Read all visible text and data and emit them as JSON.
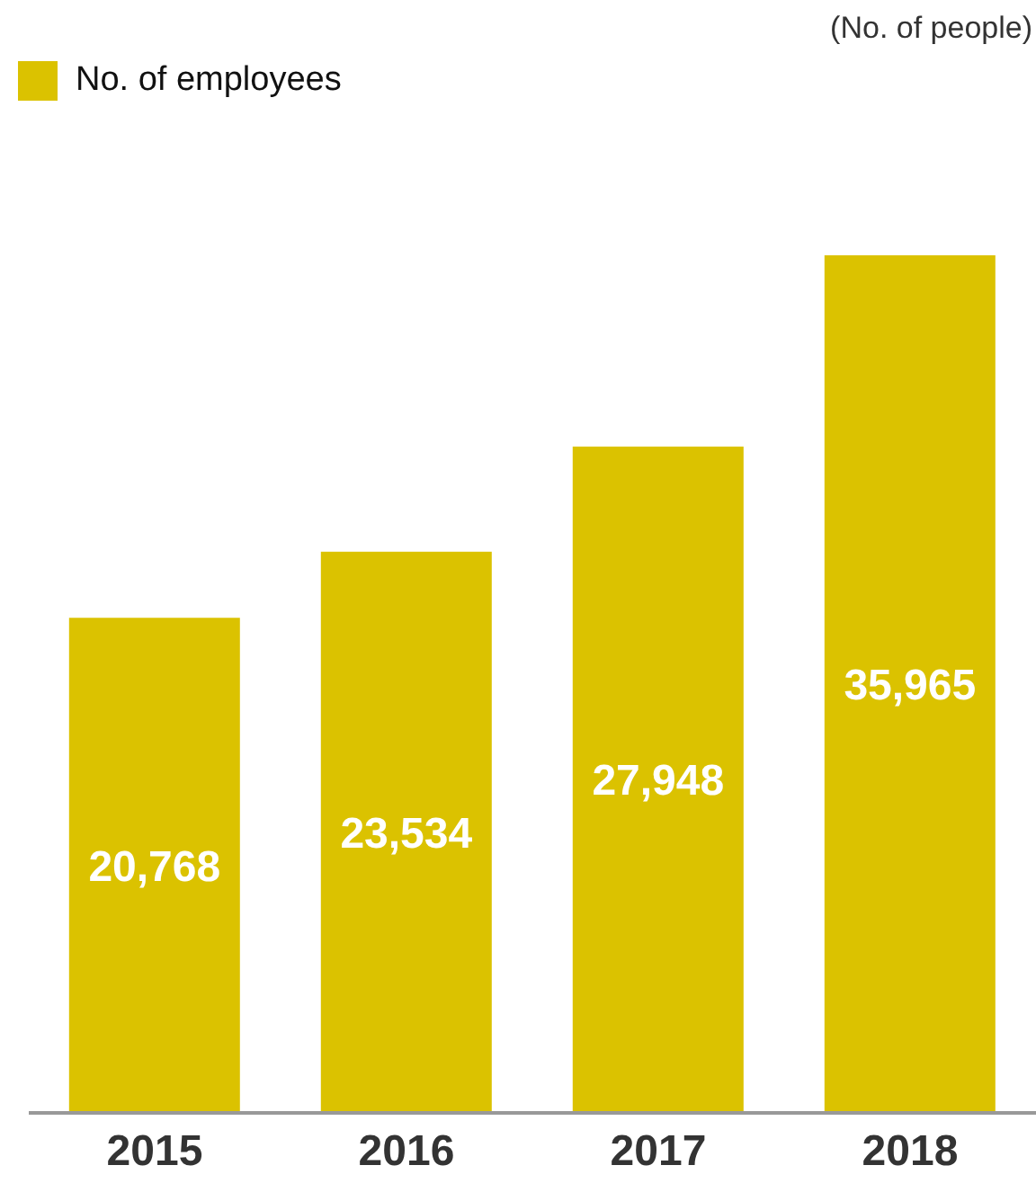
{
  "chart_data": {
    "type": "bar",
    "annotations": [
      "(No. of people)"
    ],
    "categories": [
      "2015",
      "2016",
      "2017",
      "2018"
    ],
    "series": [
      {
        "name": "No. of employees",
        "color": "#dbc200",
        "values": [
          20768,
          23534,
          27948,
          35965
        ],
        "value_labels": [
          "20,768",
          "23,534",
          "27,948",
          "35,965"
        ]
      }
    ],
    "legend": "top left"
  }
}
